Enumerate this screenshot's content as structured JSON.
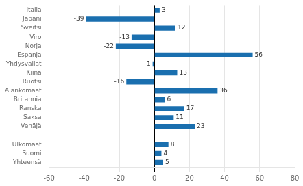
{
  "chart_data": {
    "type": "bar",
    "orientation": "horizontal",
    "categories": [
      "Italia",
      "Japani",
      "Sveitsi",
      "Viro",
      "Norja",
      "Espanja",
      "Yhdysvallat",
      "Kiina",
      "Ruotsi",
      "Alankomaat",
      "Britannia",
      "Ranska",
      "Saksa",
      "Venäjä",
      null,
      "Ulkomaat",
      "Suomi",
      "Yhteensä"
    ],
    "values": [
      3,
      -39,
      12,
      -13,
      -22,
      56,
      -1,
      13,
      -16,
      36,
      6,
      17,
      11,
      23,
      null,
      8,
      4,
      5
    ],
    "color": "#1a6faf",
    "xlim": [
      -60,
      80
    ],
    "xticks": [
      -60,
      -40,
      -20,
      0,
      20,
      40,
      60,
      80
    ],
    "grid": true,
    "data_labels": true
  }
}
